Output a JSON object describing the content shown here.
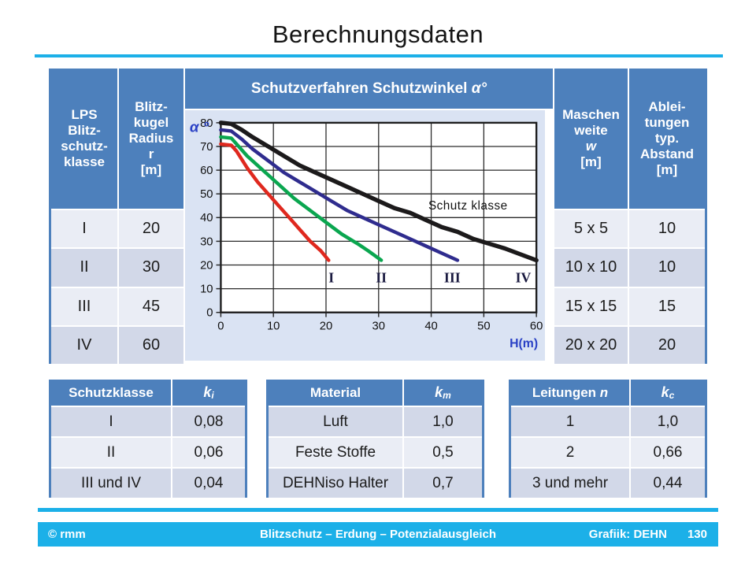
{
  "title": "Berechnungsdaten",
  "colors": {
    "accent_cyan": "#1cb0e8",
    "header_blue": "#4d80bc",
    "row_light": "#eaedf5",
    "row_dark": "#d2d8e8",
    "chart_background": "#dae3f3"
  },
  "main_table": {
    "headers": {
      "lps": "LPS\nBlitz-\nschutz-\nklasse",
      "radius": "Blitz-\nkugel\nRadius\nr\n[m]",
      "chart_title_main": "Schutzverfahren Schutzwinkel ",
      "chart_title_italic": "α°",
      "masche_top": "Maschen\nweite",
      "masche_italic": "w",
      "masche_unit": "[m]",
      "ableitung": "Ablei-\ntungen\ntyp.\nAbstand\n[m]"
    },
    "rows": [
      {
        "klasse": "I",
        "radius": "20",
        "masche": "5 x 5",
        "abstand": "10"
      },
      {
        "klasse": "II",
        "radius": "30",
        "masche": "10 x 10",
        "abstand": "10"
      },
      {
        "klasse": "III",
        "radius": "45",
        "masche": "15 x 15",
        "abstand": "15"
      },
      {
        "klasse": "IV",
        "radius": "60",
        "masche": "20 x 20",
        "abstand": "20"
      }
    ]
  },
  "chart_data": {
    "type": "line",
    "title": "Schutzverfahren Schutzwinkel α°",
    "xlabel": "H(m)",
    "ylabel": "α °",
    "xlim": [
      0,
      60
    ],
    "ylim": [
      0,
      80
    ],
    "xticks": [
      0,
      10,
      20,
      30,
      40,
      50,
      60
    ],
    "yticks": [
      0,
      10,
      20,
      30,
      40,
      50,
      60,
      70,
      80
    ],
    "grid": true,
    "annotation": {
      "text": "Schutz klasse",
      "h": 47,
      "alpha": 45
    },
    "label_alpha": 14,
    "series": [
      {
        "name": "I",
        "color": "#df281e",
        "thickness": 4.5,
        "label_h": 21,
        "points": [
          [
            0,
            71
          ],
          [
            2,
            70.5
          ],
          [
            3,
            68
          ],
          [
            5,
            61
          ],
          [
            7,
            55
          ],
          [
            9,
            50
          ],
          [
            11,
            45
          ],
          [
            13,
            40
          ],
          [
            15,
            35
          ],
          [
            17,
            30
          ],
          [
            19,
            26
          ],
          [
            20.5,
            22
          ]
        ]
      },
      {
        "name": "II",
        "color": "#0aa64f",
        "thickness": 4.5,
        "label_h": 30.5,
        "points": [
          [
            0,
            74
          ],
          [
            2,
            73.5
          ],
          [
            3,
            71
          ],
          [
            5,
            66
          ],
          [
            8,
            60
          ],
          [
            11,
            54
          ],
          [
            14,
            48
          ],
          [
            17,
            43
          ],
          [
            20,
            38
          ],
          [
            23,
            33
          ],
          [
            26,
            29
          ],
          [
            28,
            26
          ],
          [
            30.5,
            22
          ]
        ]
      },
      {
        "name": "III",
        "color": "#2f2c8e",
        "thickness": 4.5,
        "label_h": 44,
        "points": [
          [
            0,
            77
          ],
          [
            2,
            76.5
          ],
          [
            4,
            73
          ],
          [
            6,
            69
          ],
          [
            9,
            64
          ],
          [
            12,
            59
          ],
          [
            15,
            55
          ],
          [
            18,
            51
          ],
          [
            21,
            47
          ],
          [
            24,
            43
          ],
          [
            27,
            40
          ],
          [
            30,
            37
          ],
          [
            33,
            34
          ],
          [
            36,
            31
          ],
          [
            39,
            28
          ],
          [
            42,
            25
          ],
          [
            45,
            22
          ]
        ]
      },
      {
        "name": "IV",
        "color": "#1c1a1b",
        "thickness": 5.5,
        "label_h": 57.5,
        "points": [
          [
            0,
            80
          ],
          [
            2,
            79.5
          ],
          [
            4,
            77
          ],
          [
            6,
            74
          ],
          [
            9,
            70
          ],
          [
            12,
            66
          ],
          [
            15,
            62
          ],
          [
            18,
            59
          ],
          [
            21,
            56
          ],
          [
            24,
            53
          ],
          [
            27,
            50
          ],
          [
            30,
            47
          ],
          [
            33,
            44
          ],
          [
            36,
            42
          ],
          [
            39,
            39
          ],
          [
            42,
            36
          ],
          [
            45,
            34
          ],
          [
            48,
            31
          ],
          [
            51,
            29
          ],
          [
            54,
            27
          ],
          [
            57,
            24.5
          ],
          [
            60,
            22
          ]
        ]
      }
    ],
    "axis_color": "#2a41c5"
  },
  "sub_tables": [
    {
      "col1": "Schutzklasse",
      "k": "k",
      "sub": "i",
      "rows": [
        [
          "I",
          "0,08"
        ],
        [
          "II",
          "0,06"
        ],
        [
          "III und IV",
          "0,04"
        ]
      ]
    },
    {
      "col1": "Material",
      "k": "k",
      "sub": "m",
      "rows": [
        [
          "Luft",
          "1,0"
        ],
        [
          "Feste Stoffe",
          "0,5"
        ],
        [
          "DEHNiso Halter",
          "0,7"
        ]
      ]
    },
    {
      "col1": "Leitungen",
      "col1_italic": "n",
      "k": "k",
      "sub": "c",
      "rows": [
        [
          "1",
          "1,0"
        ],
        [
          "2",
          "0,66"
        ],
        [
          "3 und mehr",
          "0,44"
        ]
      ]
    }
  ],
  "footer": {
    "left": "© rmm",
    "center": "Blitzschutz – Erdung – Potenzialausgleich",
    "right": "Grafiik: DEHN",
    "page": "130"
  }
}
